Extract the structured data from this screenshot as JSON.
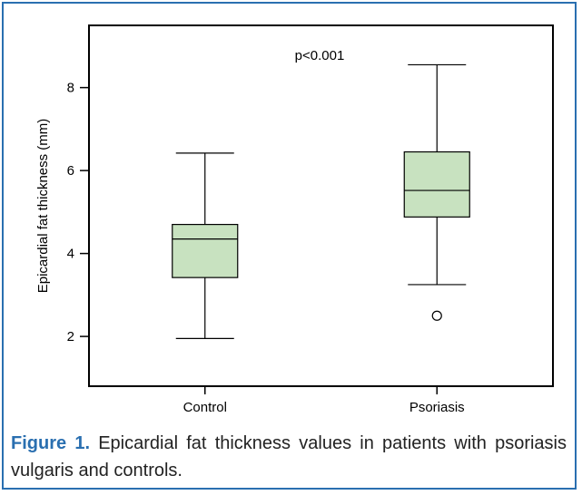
{
  "caption": {
    "label": "Figure 1.",
    "text": "Epicardial fat thickness values in patients with psoriasis vulgaris and controls."
  },
  "colors": {
    "box_fill": "#c8e2c0",
    "frame": "#2a6fb0",
    "caption_label": "#2a6fb0"
  },
  "chart_data": {
    "type": "boxplot",
    "ylabel": "Epicardial fat thickness (mm)",
    "xlabel": "",
    "annotation": "p<0.001",
    "ylim": [
      0.8,
      9.5
    ],
    "yticks": [
      2,
      4,
      6,
      8
    ],
    "categories": [
      "Control",
      "Psoriasis"
    ],
    "boxes": [
      {
        "category": "Control",
        "min": 1.95,
        "q1": 3.42,
        "median": 4.35,
        "q3": 4.7,
        "max": 6.42,
        "outliers": []
      },
      {
        "category": "Psoriasis",
        "min": 3.25,
        "q1": 4.88,
        "median": 5.52,
        "q3": 6.45,
        "max": 8.55,
        "outliers": [
          2.5
        ]
      }
    ],
    "grid": false,
    "legend": "none"
  }
}
